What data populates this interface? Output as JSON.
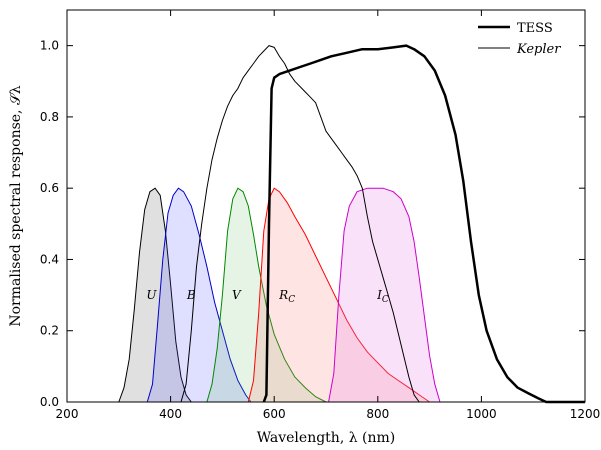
{
  "chart_data": {
    "type": "line",
    "xlabel": "Wavelength, λ (nm)",
    "ylabel": "Normalised spectral response, 𝒮λ",
    "xlim": [
      200,
      1200
    ],
    "ylim": [
      0,
      1.1
    ],
    "xticks": [
      200,
      400,
      600,
      800,
      1000,
      1200
    ],
    "yticks": [
      0.0,
      0.2,
      0.4,
      0.6,
      0.8,
      1.0
    ],
    "xtick_labels": [
      "200",
      "400",
      "600",
      "800",
      "1000",
      "1200"
    ],
    "ytick_labels": [
      "0.0",
      "0.2",
      "0.4",
      "0.6",
      "0.8",
      "1.0"
    ],
    "grid": false,
    "legend_position": "top-right",
    "legend": [
      {
        "label": "TESS",
        "italic": false,
        "linewidth": 2.5
      },
      {
        "label": "Kepler",
        "italic": true,
        "linewidth": 1
      }
    ],
    "series": [
      {
        "name": "TESS",
        "color": "#000000",
        "linewidth": 2.5,
        "points": [
          [
            580,
            0
          ],
          [
            585,
            0.02
          ],
          [
            590,
            0.5
          ],
          [
            595,
            0.88
          ],
          [
            600,
            0.91
          ],
          [
            610,
            0.92
          ],
          [
            630,
            0.93
          ],
          [
            650,
            0.94
          ],
          [
            670,
            0.95
          ],
          [
            690,
            0.96
          ],
          [
            710,
            0.97
          ],
          [
            740,
            0.98
          ],
          [
            770,
            0.99
          ],
          [
            800,
            0.99
          ],
          [
            830,
            0.995
          ],
          [
            855,
            1.0
          ],
          [
            870,
            0.99
          ],
          [
            890,
            0.97
          ],
          [
            910,
            0.93
          ],
          [
            930,
            0.86
          ],
          [
            950,
            0.75
          ],
          [
            965,
            0.62
          ],
          [
            980,
            0.45
          ],
          [
            995,
            0.3
          ],
          [
            1010,
            0.2
          ],
          [
            1030,
            0.12
          ],
          [
            1050,
            0.07
          ],
          [
            1070,
            0.04
          ],
          [
            1090,
            0.025
          ],
          [
            1110,
            0.01
          ],
          [
            1125,
            0.0
          ],
          [
            1200,
            0.0
          ]
        ]
      },
      {
        "name": "Kepler",
        "color": "#000000",
        "linewidth": 1,
        "points": [
          [
            420,
            0
          ],
          [
            430,
            0.05
          ],
          [
            440,
            0.2
          ],
          [
            450,
            0.38
          ],
          [
            460,
            0.5
          ],
          [
            470,
            0.6
          ],
          [
            480,
            0.68
          ],
          [
            490,
            0.74
          ],
          [
            500,
            0.79
          ],
          [
            510,
            0.83
          ],
          [
            520,
            0.86
          ],
          [
            530,
            0.88
          ],
          [
            540,
            0.91
          ],
          [
            550,
            0.93
          ],
          [
            560,
            0.95
          ],
          [
            570,
            0.97
          ],
          [
            580,
            0.985
          ],
          [
            590,
            1.0
          ],
          [
            600,
            0.995
          ],
          [
            610,
            0.97
          ],
          [
            620,
            0.95
          ],
          [
            630,
            0.92
          ],
          [
            640,
            0.9
          ],
          [
            650,
            0.885
          ],
          [
            660,
            0.87
          ],
          [
            670,
            0.855
          ],
          [
            680,
            0.84
          ],
          [
            690,
            0.8
          ],
          [
            700,
            0.76
          ],
          [
            710,
            0.74
          ],
          [
            720,
            0.72
          ],
          [
            730,
            0.7
          ],
          [
            740,
            0.68
          ],
          [
            750,
            0.66
          ],
          [
            760,
            0.635
          ],
          [
            770,
            0.6
          ],
          [
            780,
            0.52
          ],
          [
            790,
            0.45
          ],
          [
            800,
            0.4
          ],
          [
            810,
            0.35
          ],
          [
            820,
            0.3
          ],
          [
            830,
            0.25
          ],
          [
            840,
            0.19
          ],
          [
            850,
            0.13
          ],
          [
            860,
            0.07
          ],
          [
            870,
            0.02
          ],
          [
            880,
            0.0
          ]
        ]
      }
    ],
    "bands": [
      {
        "name": "U",
        "label": "U",
        "color": "#000000",
        "fill": "rgba(0,0,0,0.12)",
        "label_x": 363,
        "label_y": 0.3,
        "points": [
          [
            300,
            0
          ],
          [
            310,
            0.04
          ],
          [
            320,
            0.12
          ],
          [
            330,
            0.26
          ],
          [
            340,
            0.42
          ],
          [
            350,
            0.54
          ],
          [
            360,
            0.59
          ],
          [
            370,
            0.6
          ],
          [
            380,
            0.58
          ],
          [
            390,
            0.48
          ],
          [
            400,
            0.33
          ],
          [
            410,
            0.17
          ],
          [
            420,
            0.07
          ],
          [
            430,
            0.02
          ],
          [
            440,
            0.0
          ]
        ]
      },
      {
        "name": "B",
        "label": "B",
        "color": "#0000cc",
        "fill": "rgba(80,80,255,0.18)",
        "label_x": 440,
        "label_y": 0.3,
        "points": [
          [
            355,
            0
          ],
          [
            365,
            0.05
          ],
          [
            375,
            0.22
          ],
          [
            385,
            0.4
          ],
          [
            395,
            0.53
          ],
          [
            405,
            0.58
          ],
          [
            415,
            0.6
          ],
          [
            425,
            0.59
          ],
          [
            440,
            0.55
          ],
          [
            455,
            0.47
          ],
          [
            470,
            0.38
          ],
          [
            485,
            0.28
          ],
          [
            500,
            0.2
          ],
          [
            515,
            0.12
          ],
          [
            530,
            0.06
          ],
          [
            545,
            0.02
          ],
          [
            555,
            0.0
          ]
        ]
      },
      {
        "name": "V",
        "label": "V",
        "color": "#008800",
        "fill": "rgba(80,180,80,0.15)",
        "label_x": 527,
        "label_y": 0.3,
        "points": [
          [
            470,
            0
          ],
          [
            480,
            0.05
          ],
          [
            490,
            0.15
          ],
          [
            500,
            0.3
          ],
          [
            510,
            0.48
          ],
          [
            520,
            0.57
          ],
          [
            530,
            0.6
          ],
          [
            540,
            0.59
          ],
          [
            550,
            0.55
          ],
          [
            560,
            0.47
          ],
          [
            570,
            0.38
          ],
          [
            585,
            0.27
          ],
          [
            600,
            0.19
          ],
          [
            620,
            0.12
          ],
          [
            640,
            0.07
          ],
          [
            660,
            0.04
          ],
          [
            680,
            0.015
          ],
          [
            700,
            0.0
          ]
        ]
      },
      {
        "name": "R_C",
        "label": "R",
        "sub": "C",
        "color": "#ff0000",
        "fill": "rgba(255,120,120,0.2)",
        "label_x": 625,
        "label_y": 0.3,
        "points": [
          [
            550,
            0
          ],
          [
            560,
            0.06
          ],
          [
            570,
            0.25
          ],
          [
            580,
            0.48
          ],
          [
            590,
            0.57
          ],
          [
            600,
            0.6
          ],
          [
            610,
            0.59
          ],
          [
            625,
            0.56
          ],
          [
            640,
            0.52
          ],
          [
            660,
            0.47
          ],
          [
            680,
            0.41
          ],
          [
            700,
            0.35
          ],
          [
            720,
            0.29
          ],
          [
            740,
            0.23
          ],
          [
            760,
            0.18
          ],
          [
            780,
            0.14
          ],
          [
            800,
            0.11
          ],
          [
            820,
            0.08
          ],
          [
            840,
            0.06
          ],
          [
            860,
            0.04
          ],
          [
            880,
            0.02
          ],
          [
            900,
            0.0
          ]
        ]
      },
      {
        "name": "I_C",
        "label": "I",
        "sub": "C",
        "color": "#cc00cc",
        "fill": "rgba(230,140,230,0.25)",
        "label_x": 810,
        "label_y": 0.3,
        "points": [
          [
            705,
            0
          ],
          [
            715,
            0.08
          ],
          [
            725,
            0.3
          ],
          [
            735,
            0.48
          ],
          [
            745,
            0.55
          ],
          [
            760,
            0.59
          ],
          [
            780,
            0.6
          ],
          [
            810,
            0.6
          ],
          [
            830,
            0.59
          ],
          [
            845,
            0.57
          ],
          [
            860,
            0.52
          ],
          [
            870,
            0.45
          ],
          [
            880,
            0.35
          ],
          [
            890,
            0.24
          ],
          [
            900,
            0.13
          ],
          [
            910,
            0.05
          ],
          [
            920,
            0.0
          ]
        ]
      }
    ]
  }
}
